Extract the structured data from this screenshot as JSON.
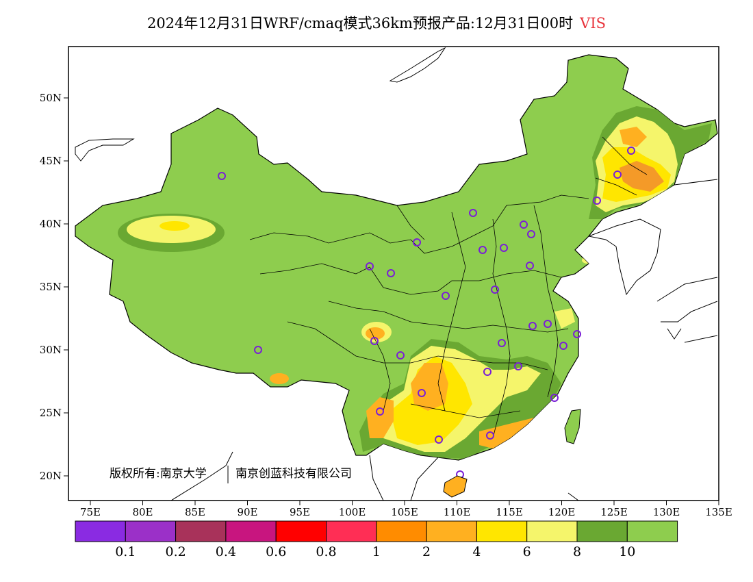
{
  "title": "2024年12月31日WRF/cmaq模式36km预报产品:12月31日00时",
  "variable": "VIS",
  "copyright": {
    "left": "版权所有:南京大学",
    "right": "南京创蓝科技有限公司"
  },
  "axes": {
    "lon_ticks": [
      "75E",
      "80E",
      "85E",
      "90E",
      "95E",
      "100E",
      "105E",
      "110E",
      "115E",
      "120E",
      "125E",
      "130E",
      "135E"
    ],
    "lat_ticks": [
      "20N",
      "25N",
      "30N",
      "35N",
      "40N",
      "45N",
      "50N"
    ]
  },
  "colorbar": {
    "colors": [
      "#8a2be2",
      "#9b30c8",
      "#a8325a",
      "#c8157f",
      "#ff0000",
      "#ff2e55",
      "#ff8c00",
      "#ffb020",
      "#ffe600",
      "#f5f56b",
      "#6aa832",
      "#8ecd4e"
    ],
    "labels": [
      "0.1",
      "0.2",
      "0.4",
      "0.6",
      "0.8",
      "1",
      "2",
      "4",
      "6",
      "8",
      "10"
    ]
  },
  "colors": {
    "land": "#8ecd4e",
    "dark_green": "#6aa832",
    "light_yellow": "#f5f56b",
    "yellow": "#ffe600",
    "orange": "#ffb020",
    "deep_orange": "#f49a28",
    "marker": "#7a1fd6"
  }
}
